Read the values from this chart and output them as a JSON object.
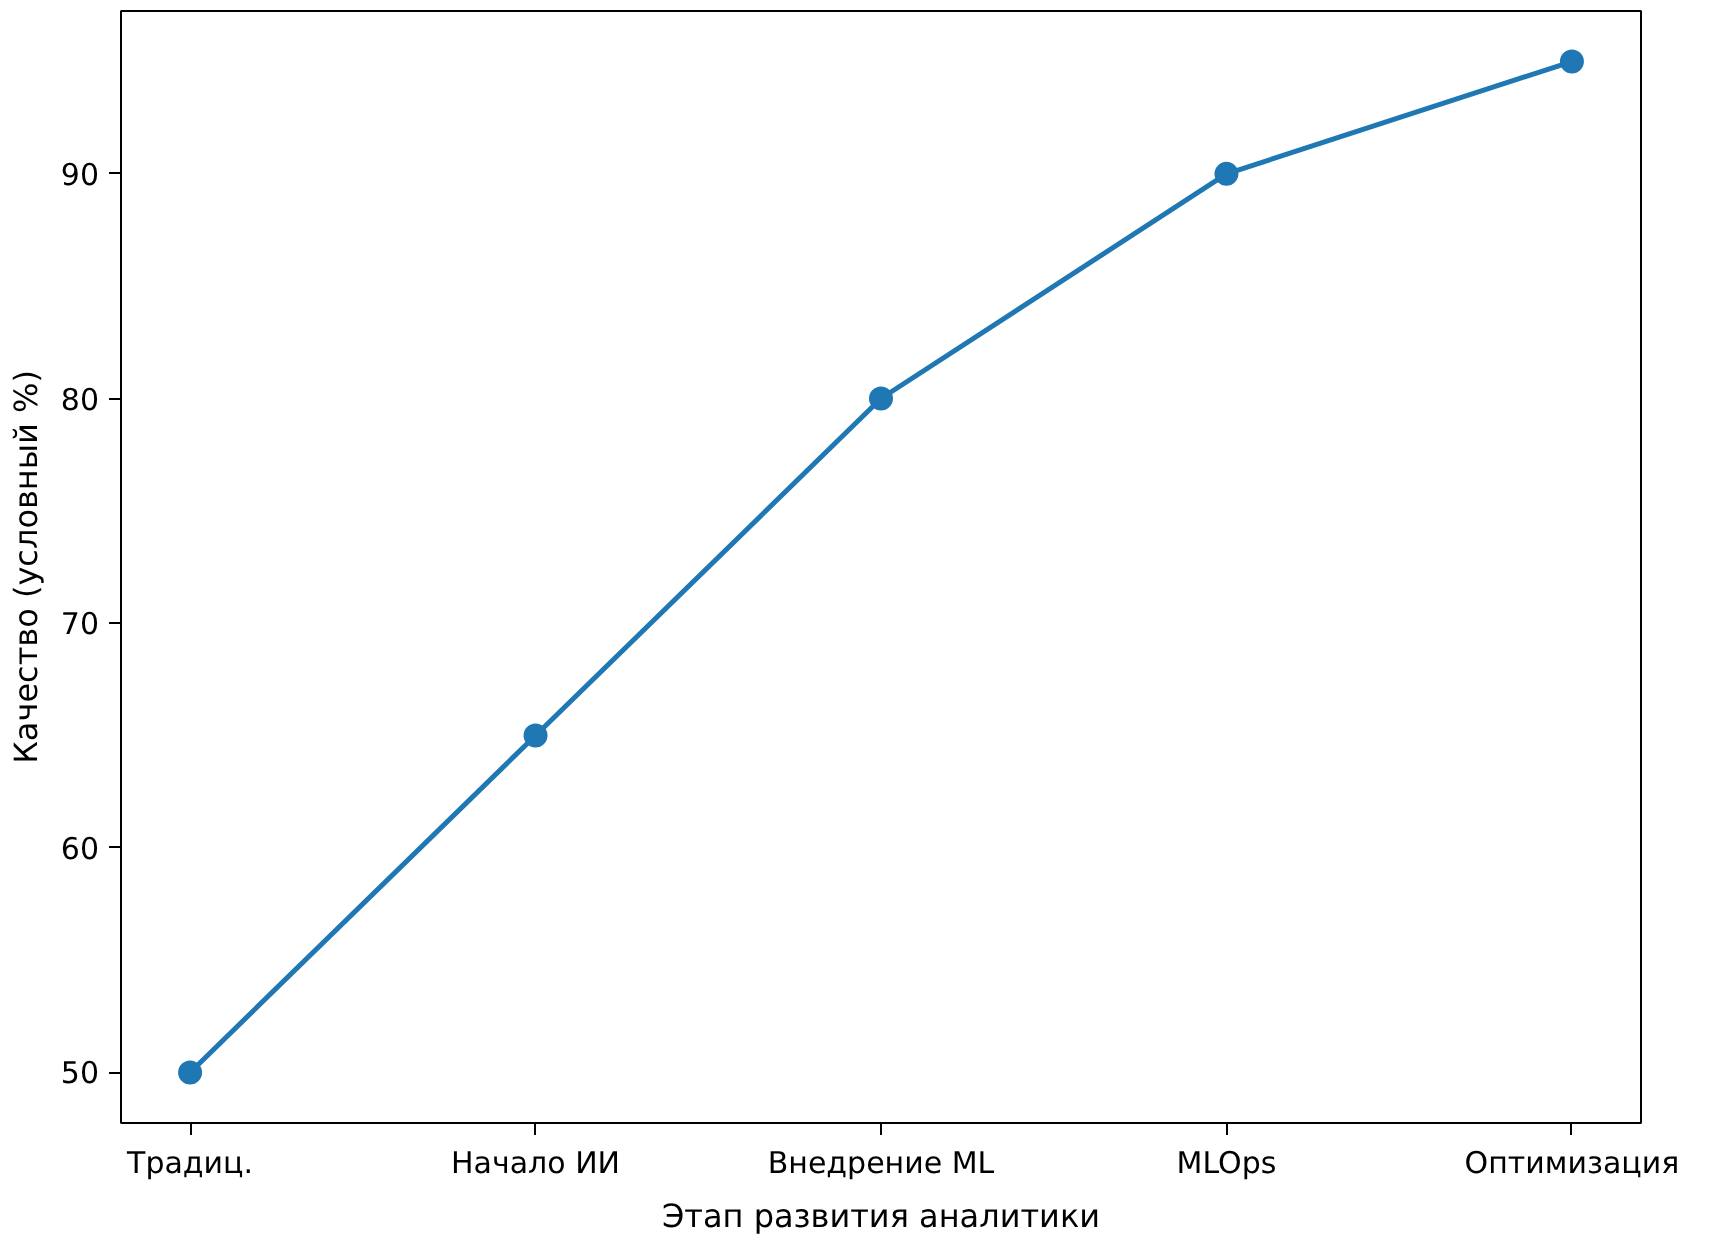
{
  "chart_data": {
    "type": "line",
    "xlabel": "Этап развития аналитики",
    "ylabel": "Качество (условный %)",
    "categories": [
      "Традиц.",
      "Начало ИИ",
      "Внедрение ML",
      "MLOps",
      "Оптимизация"
    ],
    "series": [
      {
        "color": "#1f77b4",
        "values": [
          50,
          65,
          80,
          90,
          95
        ]
      }
    ],
    "ylim": [
      47.75,
      97.25
    ],
    "yticks": [
      50,
      60,
      70,
      80,
      90
    ],
    "marker": "circle",
    "line_style": "solid",
    "grid": false
  }
}
